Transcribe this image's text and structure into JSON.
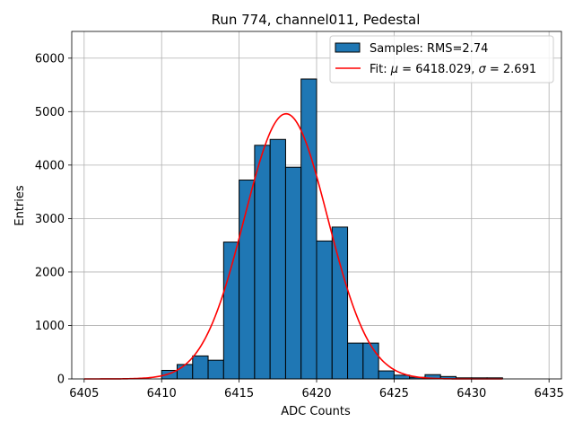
{
  "chart_data": {
    "type": "bar",
    "title": "Run 774, channel011, Pedestal",
    "xlabel": "ADC Counts",
    "ylabel": "Entries",
    "xlim": [
      6404.2,
      6435.8
    ],
    "ylim": [
      0,
      6500
    ],
    "xticks": [
      6405,
      6410,
      6415,
      6420,
      6425,
      6430,
      6435
    ],
    "yticks": [
      0,
      1000,
      2000,
      3000,
      4000,
      5000,
      6000
    ],
    "grid": true,
    "legend_position": "top-right",
    "legend": {
      "samples_label": "Samples: RMS=2.74",
      "fit_label_prefix": "Fit: ",
      "fit_mu_symbol": "μ",
      "fit_mu_value": " = 6418.029, ",
      "fit_sigma_symbol": "σ",
      "fit_sigma_value": " = 2.691"
    },
    "histogram": {
      "name": "Samples",
      "color": "#1f77b4",
      "edge_color": "#000000",
      "bin_width": 1,
      "bin_starts": [
        6410,
        6411,
        6412,
        6413,
        6414,
        6415,
        6416,
        6417,
        6418,
        6419,
        6420,
        6421,
        6422,
        6423,
        6424,
        6425,
        6426,
        6427,
        6428,
        6429,
        6430,
        6431
      ],
      "counts": [
        160,
        270,
        430,
        350,
        2560,
        3720,
        4370,
        4480,
        3960,
        5610,
        2580,
        2840,
        670,
        670,
        150,
        70,
        30,
        80,
        45,
        20,
        20,
        20
      ]
    },
    "fit": {
      "name": "Fit",
      "color": "#ff0000",
      "mu": 6418.029,
      "sigma": 2.691,
      "amplitude": 4960,
      "x_range": [
        6405,
        6432
      ]
    }
  }
}
